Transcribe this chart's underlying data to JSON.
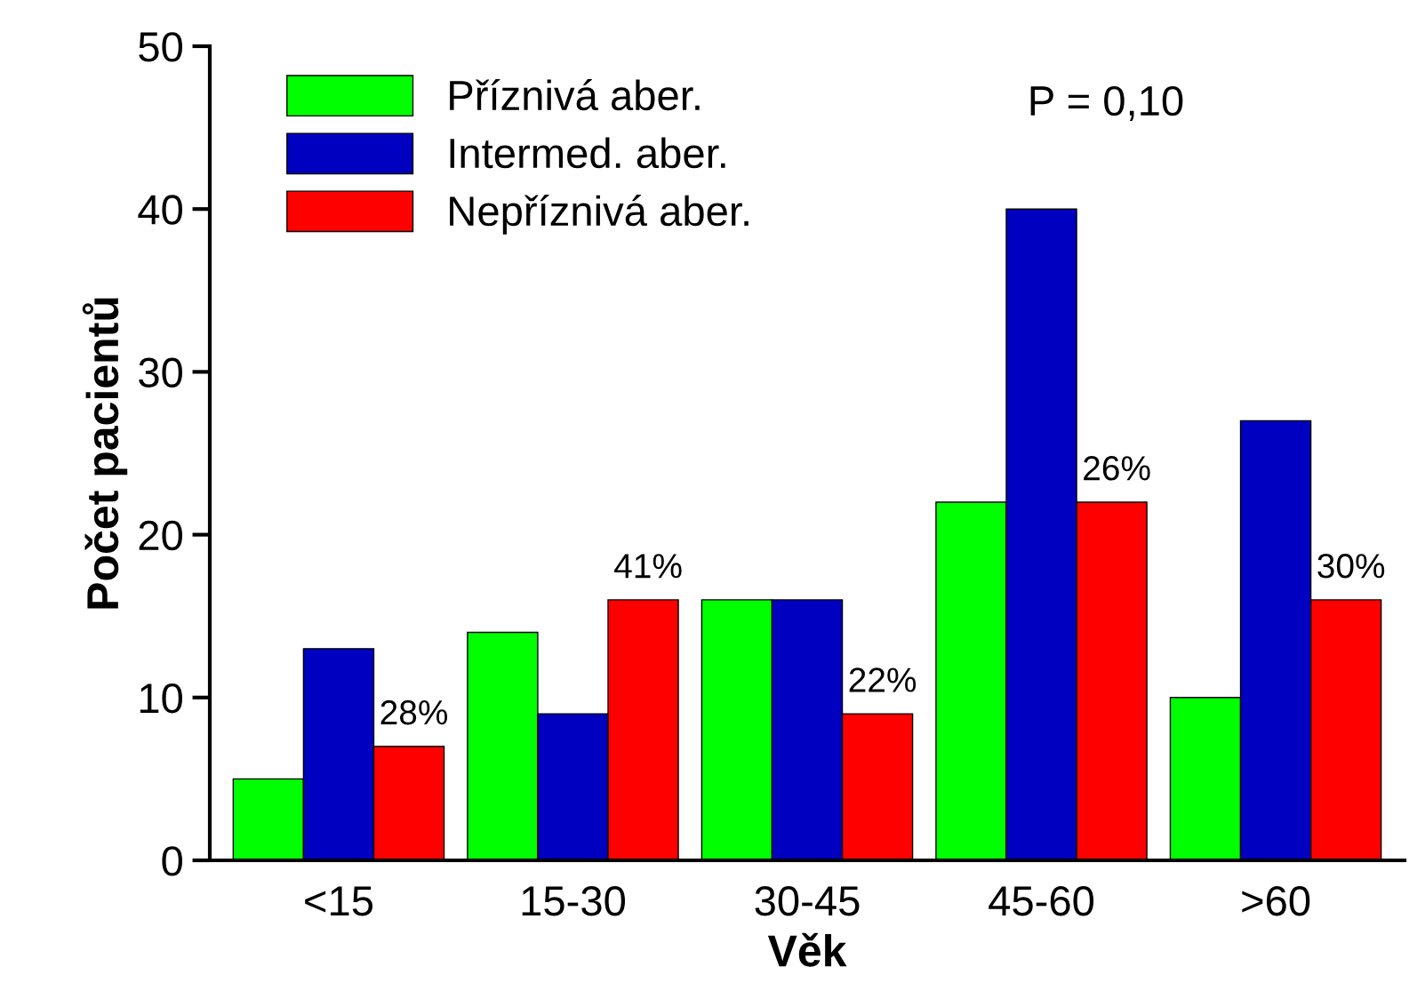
{
  "chart_data": {
    "type": "bar",
    "xlabel": "Věk",
    "ylabel": "Počet pacientů",
    "categories": [
      "<15",
      "15-30",
      "30-45",
      "45-60",
      ">60"
    ],
    "series": [
      {
        "name": "Příznivá aber.",
        "color": "#00ff00",
        "values": [
          5,
          14,
          16,
          22,
          10
        ]
      },
      {
        "name": "Intermed. aber.",
        "color": "#0000c0",
        "values": [
          13,
          9,
          16,
          40,
          27
        ]
      },
      {
        "name": "Nepříznivá aber.",
        "color": "#ff0000",
        "values": [
          7,
          16,
          9,
          22,
          16
        ]
      }
    ],
    "ylim": [
      0,
      50
    ],
    "yticks": [
      0,
      10,
      20,
      30,
      40,
      50
    ],
    "grid": false,
    "legend": "top left",
    "annotations": [
      "P = 0,10",
      "28%",
      "41%",
      "22%",
      "26%",
      "30%"
    ]
  }
}
